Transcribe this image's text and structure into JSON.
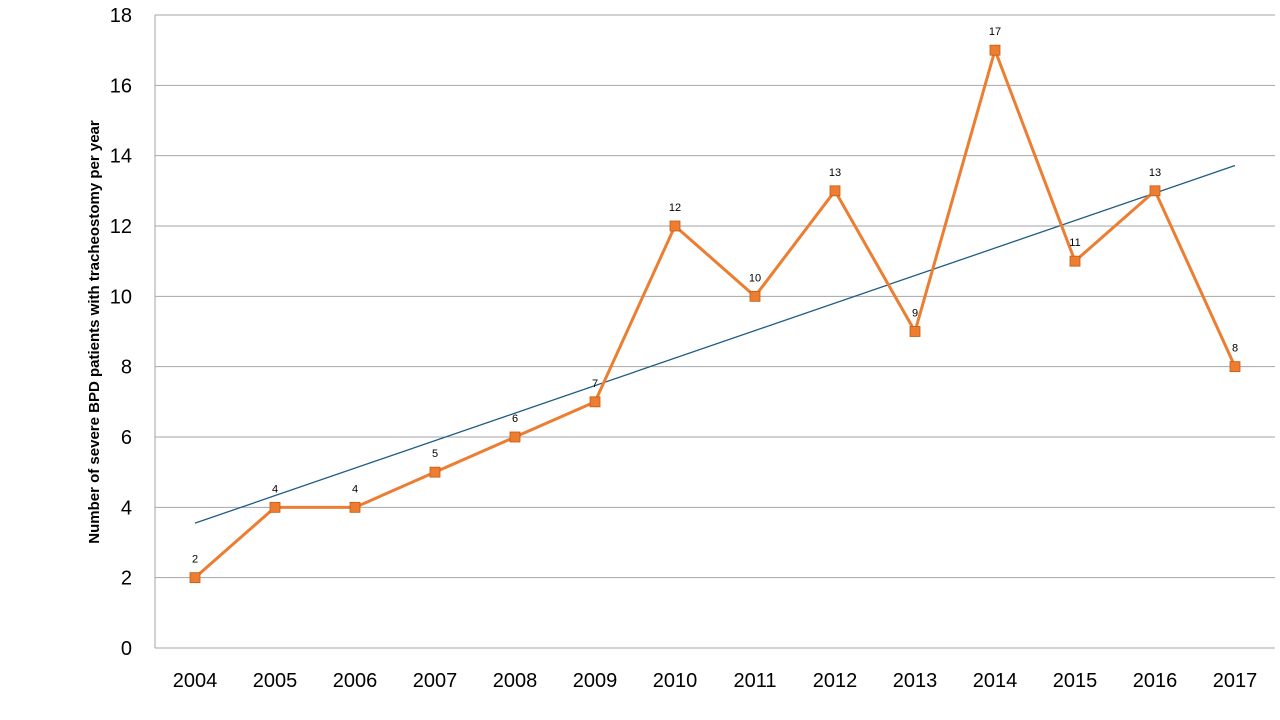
{
  "chart_data": {
    "type": "line",
    "title": "",
    "xlabel": "",
    "ylabel": "Number of severe  BPD patients with tracheostomy per year",
    "categories": [
      "2004",
      "2005",
      "2006",
      "2007",
      "2008",
      "2009",
      "2010",
      "2011",
      "2012",
      "2013",
      "2014",
      "2015",
      "2016",
      "2017"
    ],
    "series": [
      {
        "name": "",
        "values": [
          2,
          4,
          4,
          5,
          6,
          7,
          12,
          10,
          13,
          9,
          17,
          11,
          13,
          8
        ],
        "color": "#ED7D31",
        "marker": "square",
        "data_labels": true
      }
    ],
    "trendline": {
      "type": "linear",
      "color": "#1F5C85",
      "start": 3.55,
      "end": 13.72
    },
    "ylim": [
      0,
      18
    ],
    "yticks": [
      0,
      2,
      4,
      6,
      8,
      10,
      12,
      14,
      16,
      18
    ],
    "grid": true,
    "legend": "none"
  }
}
